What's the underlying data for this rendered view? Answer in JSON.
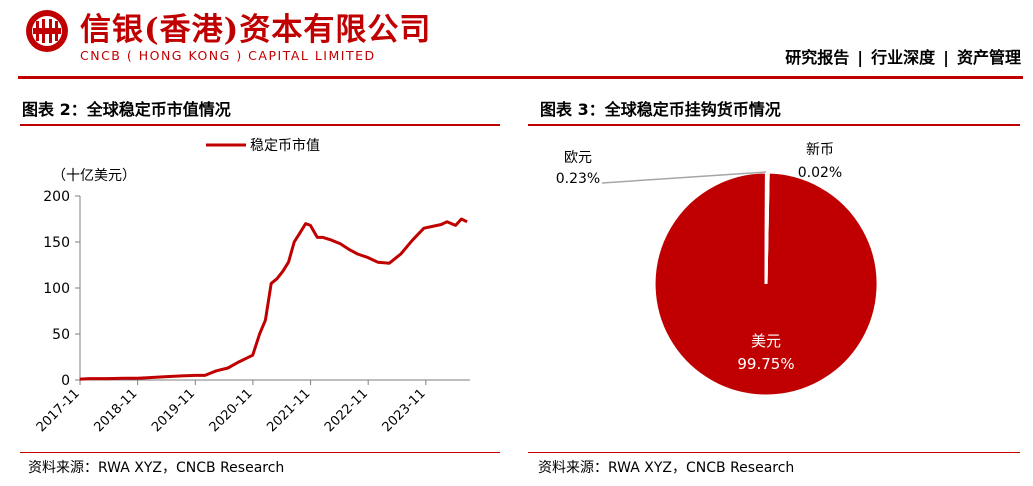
{
  "header": {
    "brand_cn": "信银(香港)资本有限公司",
    "brand_en": "CNCB ( HONG KONG ) CAPITAL LIMITED",
    "meta": [
      "研究报告",
      "行业深度",
      "资产管理"
    ],
    "meta_separator": "|",
    "accent_color": "#c00000"
  },
  "panels": {
    "left": {
      "title": "图表 2：全球稳定币市值情况",
      "source": "资料来源：RWA XYZ，CNCB Research"
    },
    "right": {
      "title": "图表 3：全球稳定币挂钩货币情况",
      "source": "资料来源：RWA XYZ，CNCB Research"
    }
  },
  "chart_data": [
    {
      "type": "line",
      "unit_label": "（十亿美元）",
      "legend": "稳定币市值",
      "legend_position": "top",
      "ylim": [
        0,
        200
      ],
      "yticks": [
        0,
        50,
        100,
        150,
        200
      ],
      "xticks": [
        "2017-11",
        "2018-11",
        "2019-11",
        "2020-11",
        "2021-11",
        "2022-11",
        "2023-11"
      ],
      "xlim": [
        2017.833,
        2024.6
      ],
      "grid": false,
      "color": "#c00000",
      "series": [
        {
          "x": [
            2017.83,
            2018.0,
            2018.3,
            2018.6,
            2018.83,
            2019.0,
            2019.3,
            2019.6,
            2019.83,
            2020.0,
            2020.2,
            2020.4,
            2020.6,
            2020.83,
            2020.95,
            2021.05,
            2021.15,
            2021.25,
            2021.35,
            2021.45,
            2021.55,
            2021.65,
            2021.75,
            2021.83,
            2021.95,
            2022.05,
            2022.2,
            2022.35,
            2022.5,
            2022.65,
            2022.83,
            2023.0,
            2023.2,
            2023.4,
            2023.6,
            2023.8,
            2023.95,
            2024.1,
            2024.2,
            2024.35,
            2024.45,
            2024.55
          ],
          "y": [
            1,
            1.5,
            1.5,
            2,
            2,
            2.5,
            3.5,
            4.5,
            5,
            5,
            10,
            13,
            20,
            27,
            50,
            65,
            105,
            110,
            118,
            128,
            150,
            160,
            170,
            168,
            155,
            155,
            152,
            148,
            142,
            137,
            133,
            128,
            127,
            137,
            152,
            165,
            167,
            169,
            172,
            168,
            175,
            172
          ]
        }
      ]
    },
    {
      "type": "pie",
      "slices": [
        {
          "label": "美元",
          "value": 99.75,
          "value_label": "99.75%",
          "color": "#c00000"
        },
        {
          "label": "欧元",
          "value": 0.23,
          "value_label": "0.23%",
          "color": "#c00000"
        },
        {
          "label": "新币",
          "value": 0.02,
          "value_label": "0.02%",
          "color": "#c00000"
        }
      ],
      "label_positions": [
        "inside",
        "outside-left",
        "outside-right"
      ]
    }
  ]
}
